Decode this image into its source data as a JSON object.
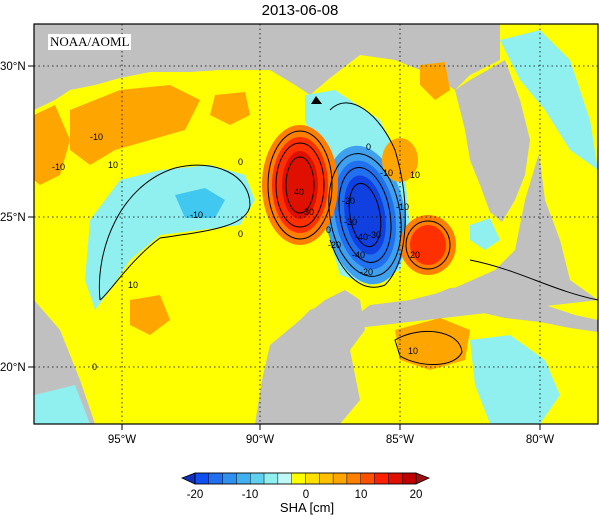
{
  "title": "2013-06-08",
  "credit": "NOAA/AOML",
  "lat_labels": [
    "30°N",
    "25°N",
    "20°N"
  ],
  "lon_labels": [
    "95°W",
    "90°W",
    "85°W",
    "80°W"
  ],
  "contour_labels": [
    "-10",
    "-10",
    "-10",
    "0",
    "0",
    "0",
    "0",
    "10",
    "10",
    "10",
    "-40",
    "-30",
    "-20",
    "-10",
    "40",
    "30",
    "-20",
    "-10",
    "-30",
    "-40",
    "20",
    "-20",
    "0",
    "10"
  ],
  "colorbar": {
    "label": "SHA [cm]",
    "ticks": [
      "-20",
      "-10",
      "0",
      "10",
      "20"
    ],
    "min": -20,
    "max": 20
  },
  "colors": {
    "land": "#c0c0c0",
    "ocean_base": "#ffff00",
    "strong_positive": "#ff2000",
    "strong_negative": "#1050f0"
  }
}
